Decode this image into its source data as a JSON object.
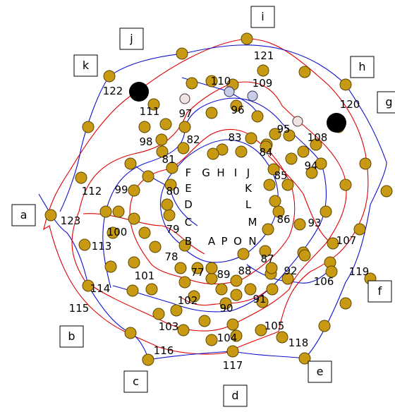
{
  "outer_labels": [
    "a",
    "b",
    "c",
    "d",
    "e",
    "f",
    "g",
    "h",
    "i",
    "j",
    "k"
  ],
  "inner_letters": [
    "A",
    "B",
    "C",
    "D",
    "E",
    "F",
    "G",
    "H",
    "I",
    "J",
    "K",
    "L",
    "M",
    "N",
    "O",
    "P"
  ],
  "node_numbers": [
    "77",
    "78",
    "79",
    "80",
    "81",
    "82",
    "83",
    "84",
    "85",
    "86",
    "87",
    "88",
    "89",
    "90",
    "91",
    "92",
    "93",
    "94",
    "95",
    "96",
    "97",
    "98",
    "99",
    "100",
    "101",
    "102",
    "103",
    "104",
    "105",
    "106",
    "107",
    "108",
    "109",
    "110",
    "111",
    "112",
    "113",
    "114",
    "115",
    "116",
    "117",
    "118",
    "119",
    "120",
    "121",
    "122",
    "123"
  ],
  "colors": {
    "red_curve": "#e00000",
    "blue_curve": "#1010d0",
    "node_fill": "#c89a14",
    "large_node": "#000000"
  }
}
